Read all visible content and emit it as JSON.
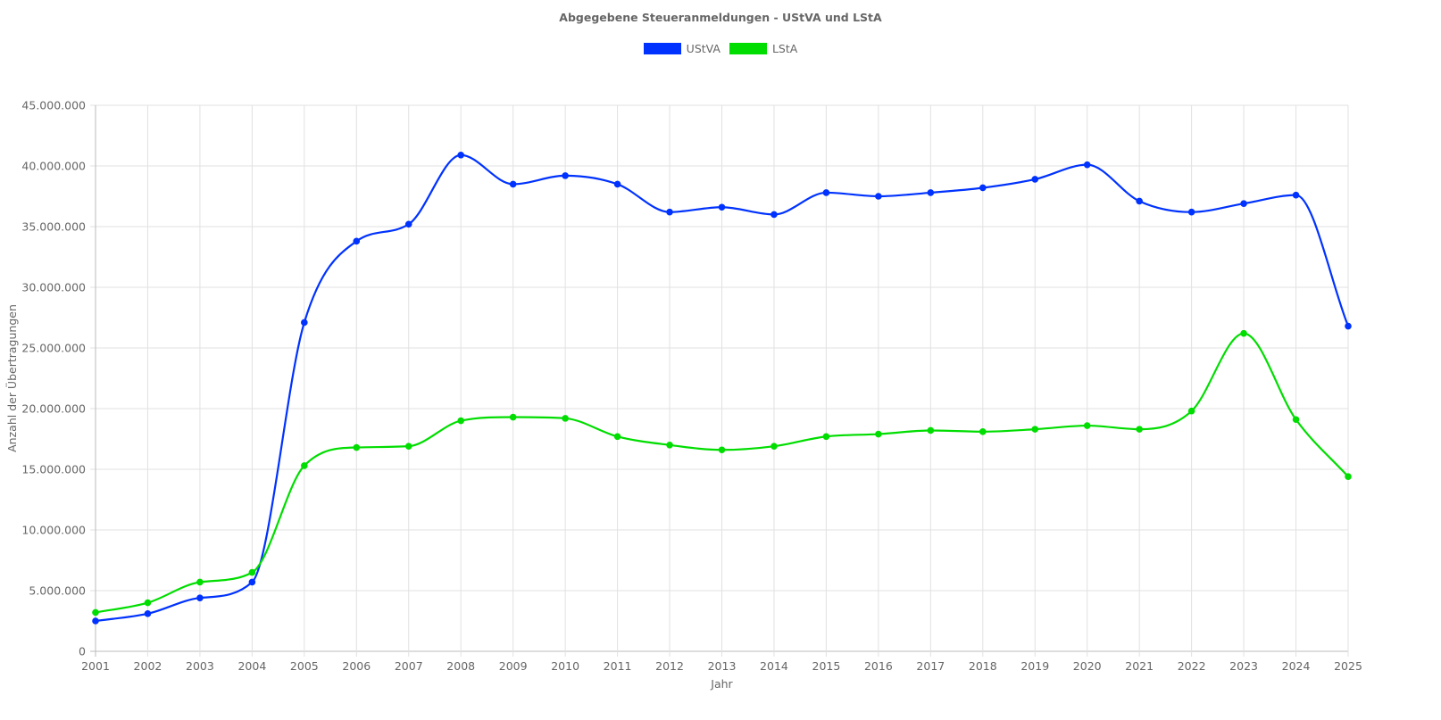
{
  "chart_data": {
    "type": "line",
    "title": "Abgegebene Steueranmeldungen - UStVA und LStA",
    "xlabel": "Jahr",
    "ylabel": "Anzahl der Übertragungen",
    "ylim": [
      0,
      45000000
    ],
    "yticks": [
      "0",
      "5.000.000",
      "10.000.000",
      "15.000.000",
      "20.000.000",
      "25.000.000",
      "30.000.000",
      "35.000.000",
      "40.000.000",
      "45.000.000"
    ],
    "grid": true,
    "legend_position": "top-center",
    "categories": [
      "2001",
      "2002",
      "2003",
      "2004",
      "2005",
      "2006",
      "2007",
      "2008",
      "2009",
      "2010",
      "2011",
      "2012",
      "2013",
      "2014",
      "2015",
      "2016",
      "2017",
      "2018",
      "2019",
      "2020",
      "2021",
      "2022",
      "2023",
      "2024",
      "2025"
    ],
    "series": [
      {
        "name": "UStVA",
        "color": "#0032ff",
        "values": [
          2500000,
          3100000,
          4400000,
          5700000,
          27100000,
          33800000,
          35200000,
          40900000,
          38500000,
          39200000,
          38500000,
          36200000,
          36600000,
          36000000,
          37800000,
          37500000,
          37800000,
          38200000,
          38900000,
          40100000,
          37100000,
          36200000,
          36900000,
          37600000,
          26800000
        ]
      },
      {
        "name": "LStA",
        "color": "#00dd00",
        "values": [
          3200000,
          4000000,
          5700000,
          6500000,
          15300000,
          16800000,
          16900000,
          19000000,
          19300000,
          19200000,
          17700000,
          17000000,
          16600000,
          16900000,
          17700000,
          17900000,
          18200000,
          18100000,
          18300000,
          18600000,
          18300000,
          19800000,
          26200000,
          19100000,
          14400000
        ]
      }
    ]
  }
}
